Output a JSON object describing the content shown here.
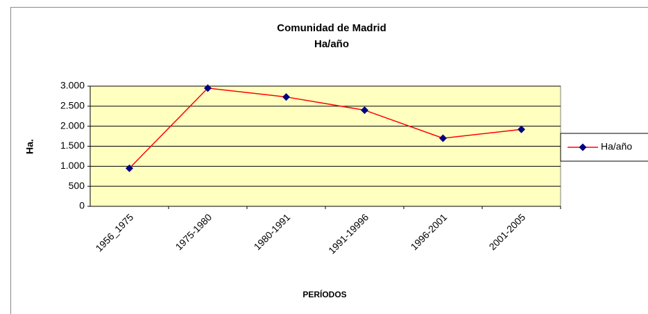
{
  "chart_data": {
    "type": "line",
    "title": "Comunidad de Madrid",
    "subtitle": "Ha/año",
    "x_label": "PERÍODOS",
    "y_label": "Ha.",
    "categories": [
      "1956_1975",
      "1975-1980",
      "1980-1991",
      "1991-19996",
      "1996-2001",
      "2001-2005"
    ],
    "series": [
      {
        "name": "Ha/año",
        "color": "#ff0000",
        "marker_color": "#000080",
        "values": [
          950,
          2950,
          2730,
          2400,
          1700,
          1920
        ]
      }
    ],
    "ylim": [
      0,
      3000
    ],
    "yticks": [
      0,
      500,
      {
        "value": 1000,
        "label": "1.000"
      },
      {
        "value": 1500,
        "label": "1.500"
      },
      {
        "value": 2000,
        "label": "2.000"
      },
      {
        "value": 2500,
        "label": "2.500"
      },
      {
        "value": 3000,
        "label": "3.000"
      }
    ],
    "grid": true,
    "legend": "right",
    "plot_background": "#ffffc0"
  }
}
